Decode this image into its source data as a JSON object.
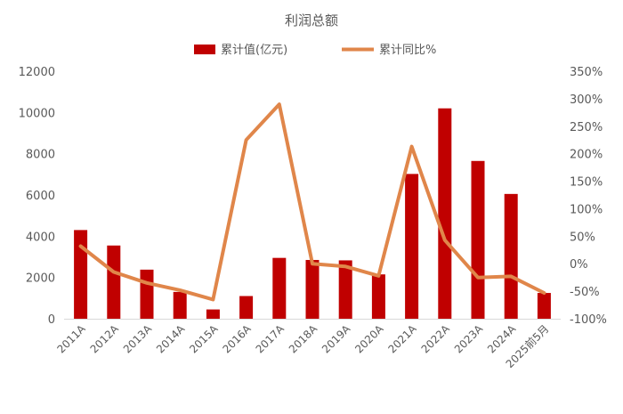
{
  "chart_data": {
    "type": "bar+line",
    "title": "利润总额",
    "categories": [
      "2011A",
      "2012A",
      "2013A",
      "2014A",
      "2015A",
      "2016A",
      "2017A",
      "2018A",
      "2019A",
      "2020A",
      "2021A",
      "2022A",
      "2023A",
      "2024A",
      "2025前5月"
    ],
    "series": [
      {
        "name": "累计值(亿元)",
        "type": "bar",
        "axis": "left",
        "color": "#C00000",
        "values": [
          4300,
          3550,
          2380,
          1300,
          450,
          1100,
          2950,
          2850,
          2830,
          2150,
          7020,
          10200,
          7650,
          6050,
          1250
        ]
      },
      {
        "name": "累计同比%",
        "type": "line",
        "axis": "right",
        "color": "#E0864A",
        "values": [
          32,
          -15,
          -35,
          -48,
          -65,
          225,
          290,
          0,
          -5,
          -22,
          213,
          43,
          -25,
          -23,
          -53
        ]
      }
    ],
    "y_left": {
      "min": 0,
      "max": 12000,
      "ticks": [
        "0",
        "2000",
        "4000",
        "6000",
        "8000",
        "10000",
        "12000"
      ]
    },
    "y_right": {
      "min": -100,
      "max": 350,
      "ticks": [
        "-100%",
        "-50%",
        "0%",
        "50%",
        "100%",
        "150%",
        "200%",
        "250%",
        "300%",
        "350%"
      ]
    },
    "grid": false,
    "legend": "top-center"
  }
}
